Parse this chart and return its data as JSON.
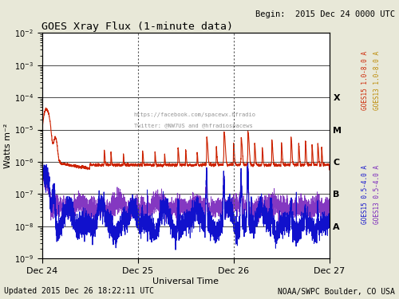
{
  "title": "GOES Xray Flux (1-minute data)",
  "title_begin": "Begin:  2015 Dec 24 0000 UTC",
  "xlabel": "Universal Time",
  "ylabel": "Watts m⁻²",
  "footer_left": "Updated 2015 Dec 26 18:22:11 UTC",
  "footer_right": "NOAA/SWPC Boulder, CO USA",
  "watermark_line1": "https://facebook.com/spacewx.hfradio",
  "watermark_line2": "Twitter: @NW7US and @hfradiospacews",
  "xlim_days": [
    0,
    3.0
  ],
  "ylim": [
    1e-09,
    0.01
  ],
  "xticklabels": [
    "Dec 24",
    "Dec 25",
    "Dec 26",
    "Dec 27"
  ],
  "xtick_positions": [
    0,
    1,
    2,
    3
  ],
  "bg_color": "#e8e8d8",
  "plot_bg_color": "#ffffff",
  "hlines": [
    1e-09,
    1e-08,
    1e-07,
    1e-06,
    1e-05,
    0.0001,
    0.001,
    0.01
  ],
  "flare_class_labels": [
    "A",
    "B",
    "C",
    "M",
    "X"
  ],
  "flare_class_values": [
    1e-08,
    1e-07,
    1e-06,
    1e-05,
    0.0001
  ],
  "vlines_dashed": [
    1.0,
    2.0
  ],
  "goes15_long_color": "#cc2200",
  "goes13_long_color": "#bb8800",
  "goes15_short_color": "#1111cc",
  "goes13_short_color": "#7722bb",
  "right_label_goes15_long": "GOES15 1.0-8.0 A",
  "right_label_goes13_long": "GOES13 1.0-8.0 A",
  "right_label_goes15_short": "GOES15 0.5-4.0 A",
  "right_label_goes13_short": "GOES13 0.5-4.0 A"
}
